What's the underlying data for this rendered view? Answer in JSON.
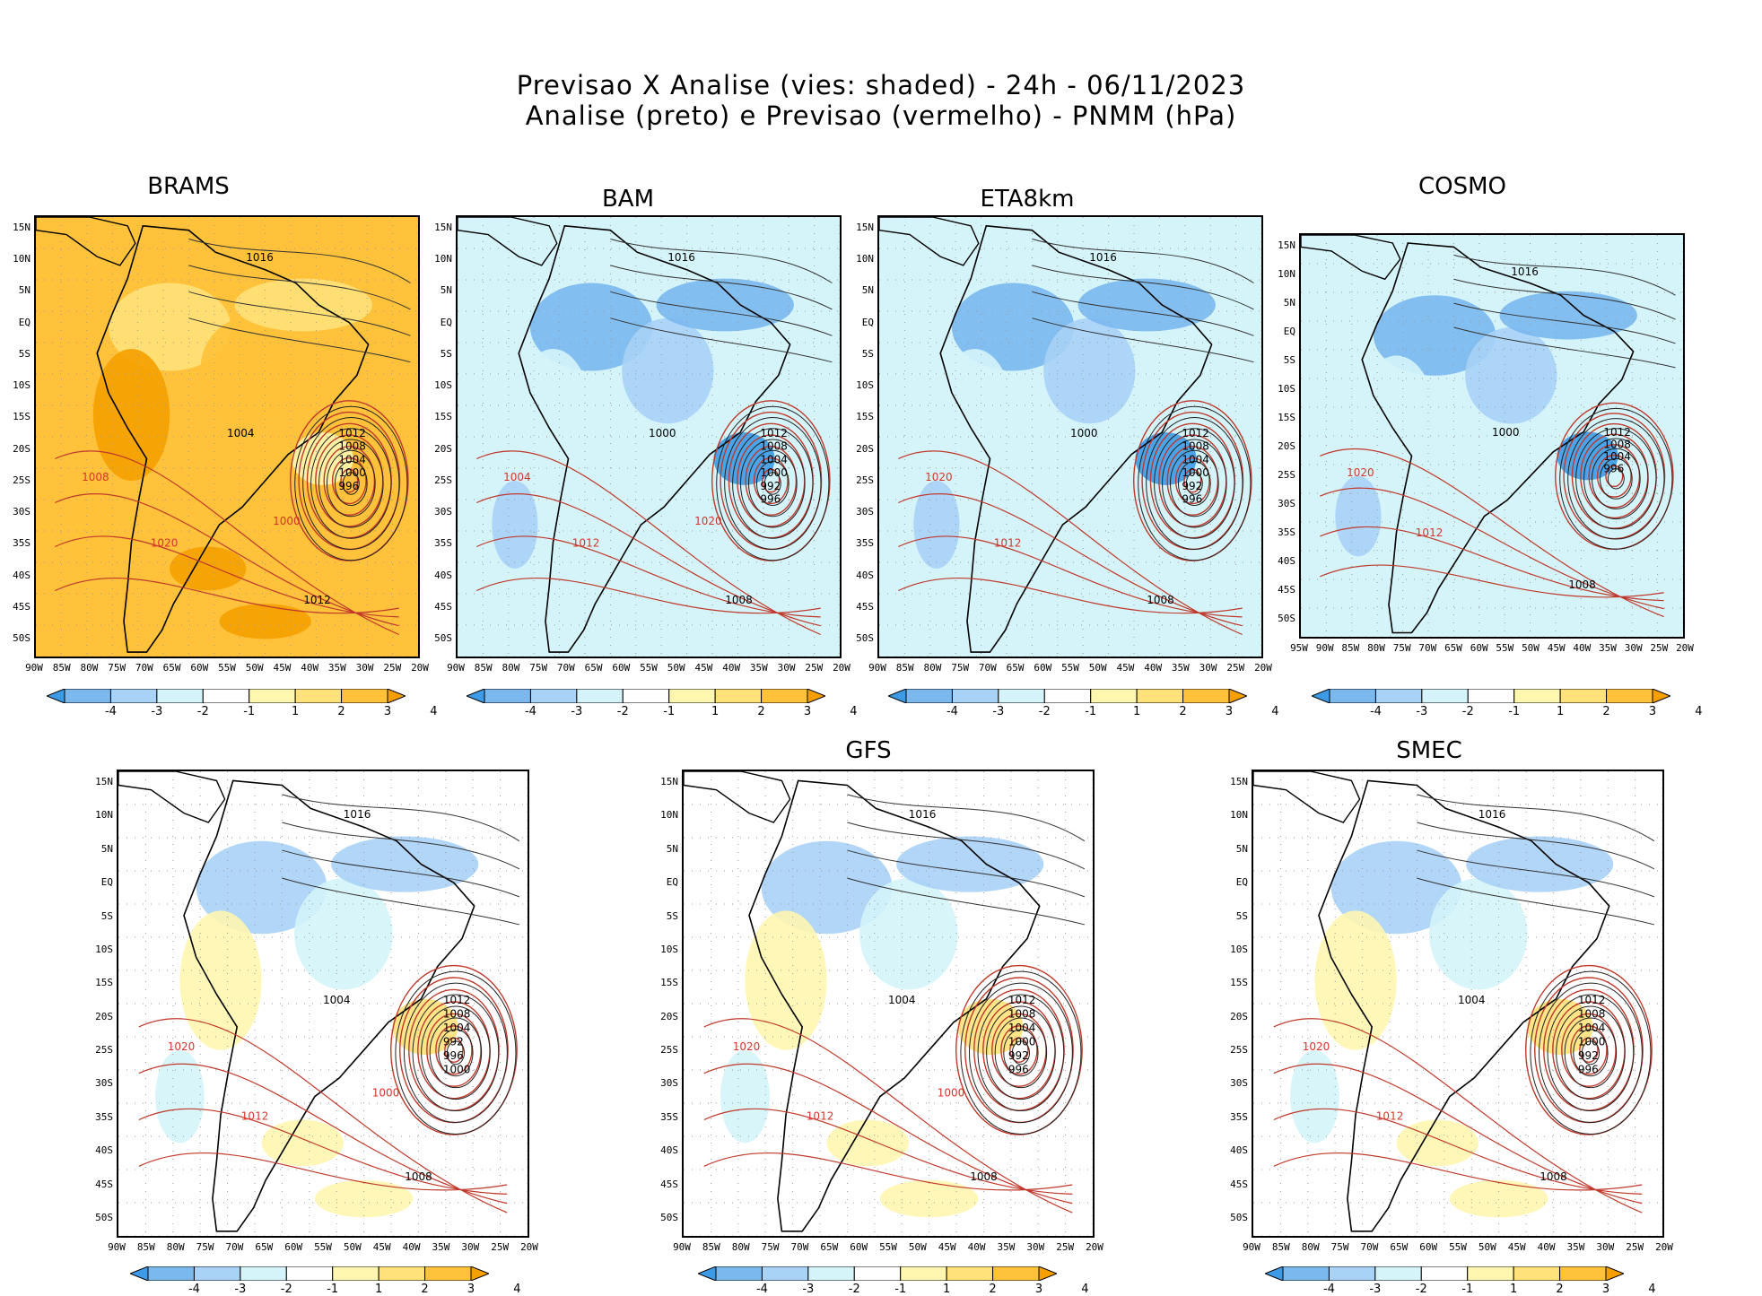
{
  "header": {
    "line1": "Previsao X Analise (vies: shaded) - 24h - 06/11/2023",
    "line2": "Analise (preto) e Previsao (vermelho) - PNMM (hPa)"
  },
  "axes": {
    "lat_labels": [
      "15N",
      "10N",
      "5N",
      "EQ",
      "5S",
      "10S",
      "15S",
      "20S",
      "25S",
      "30S",
      "35S",
      "40S",
      "45S",
      "50S"
    ],
    "lon_labels_a": [
      "90W",
      "85W",
      "80W",
      "75W",
      "70W",
      "65W",
      "60W",
      "55W",
      "50W",
      "45W",
      "40W",
      "35W",
      "30W",
      "25W",
      "20W"
    ],
    "lon_labels_b": [
      "95W",
      "90W",
      "85W",
      "80W",
      "75W",
      "70W",
      "65W",
      "60W",
      "55W",
      "50W",
      "45W",
      "40W",
      "35W",
      "30W",
      "25W",
      "20W"
    ]
  },
  "colorbar": {
    "labels": [
      "-4",
      "-3",
      "-2",
      "-1",
      "1",
      "2",
      "3",
      "4"
    ],
    "colors": [
      "#3c9ae6",
      "#7ab8ee",
      "#a8d2f6",
      "#d4f4fa",
      "#ffffff",
      "#fff6b0",
      "#ffe27a",
      "#ffc23a",
      "#f5a000"
    ]
  },
  "panels": [
    {
      "name": "BRAMS",
      "bias": "warm",
      "low_labels": [
        "1012",
        "1008",
        "1004",
        "1000",
        "996"
      ],
      "other_labels": [
        "1016",
        "1020",
        "1012",
        "1008",
        "1004",
        "1000"
      ]
    },
    {
      "name": "BAM",
      "bias": "cool",
      "low_labels": [
        "1012",
        "1008",
        "1004",
        "1000",
        "992",
        "996"
      ],
      "other_labels": [
        "1016",
        "1012",
        "1008",
        "1004",
        "1000",
        "1020"
      ]
    },
    {
      "name": "ETA8km",
      "bias": "cool",
      "low_labels": [
        "1012",
        "1008",
        "1004",
        "1000",
        "992",
        "996"
      ],
      "other_labels": [
        "1016",
        "1012",
        "1008",
        "1020",
        "1000"
      ]
    },
    {
      "name": "COSMO",
      "bias": "cool",
      "low_labels": [
        "1012",
        "1008",
        "1004",
        "996"
      ],
      "other_labels": [
        "1016",
        "1012",
        "1008",
        "1020",
        "1000"
      ]
    },
    {
      "name": "",
      "bias": "mixed",
      "low_labels": [
        "1012",
        "1008",
        "1004",
        "992",
        "996",
        "1000"
      ],
      "other_labels": [
        "1016",
        "1012",
        "1008",
        "1020",
        "1004",
        "1000"
      ]
    },
    {
      "name": "GFS",
      "bias": "mixed",
      "low_labels": [
        "1012",
        "1008",
        "1004",
        "1000",
        "992",
        "996"
      ],
      "other_labels": [
        "1016",
        "1012",
        "1008",
        "1020",
        "1004",
        "1000"
      ]
    },
    {
      "name": "SMEC",
      "bias": "mixed",
      "low_labels": [
        "1012",
        "1008",
        "1004",
        "1000",
        "992",
        "996"
      ],
      "other_labels": [
        "1016",
        "1012",
        "1008",
        "1020",
        "1004"
      ]
    }
  ]
}
